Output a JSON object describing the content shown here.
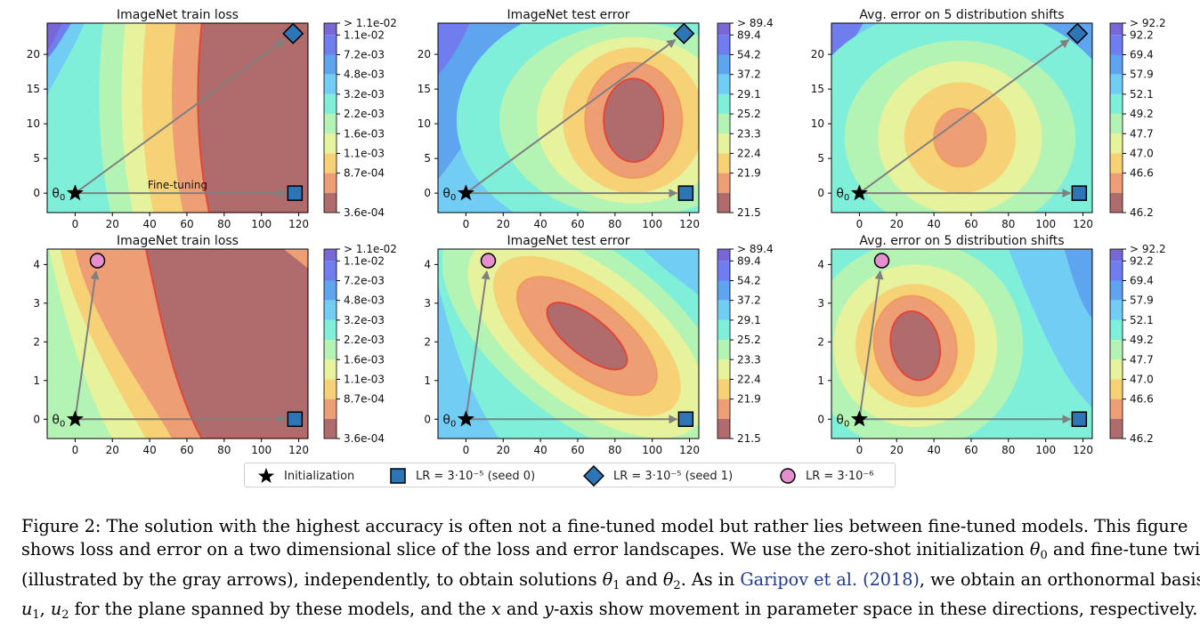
{
  "figure": {
    "panels": [
      {
        "title": "ImageNet train loss",
        "cbar": [
          "> 1.1e-02",
          "1.1e-02",
          "7.2e-03",
          "4.8e-03",
          "3.2e-03",
          "2.2e-03",
          "1.6e-03",
          "1.1e-03",
          "8.7e-04",
          "3.6e-04"
        ]
      },
      {
        "title": "ImageNet test error",
        "cbar": [
          "> 89.4",
          "89.4",
          "54.2",
          "37.2",
          "29.1",
          "25.2",
          "23.3",
          "22.4",
          "21.9",
          "21.5"
        ]
      },
      {
        "title": "Avg. error on 5 distribution shifts",
        "cbar": [
          "> 92.2",
          "92.2",
          "69.4",
          "57.9",
          "52.1",
          "49.2",
          "47.7",
          "47.0",
          "46.6",
          "46.2"
        ]
      }
    ],
    "x_ticks": [
      "0",
      "20",
      "40",
      "60",
      "80",
      "100",
      "120"
    ],
    "y_ticks_top": [
      "0",
      "5",
      "10",
      "15",
      "20"
    ],
    "y_ticks_bottom": [
      "0",
      "1",
      "2",
      "3",
      "4"
    ],
    "origin_label": "θ0",
    "finetuning_label": "Fine-tuning",
    "colors": {
      "levels": [
        "#b06c6c",
        "#ee9e74",
        "#f6d176",
        "#e6f39c",
        "#b3f3b4",
        "#7fefd9",
        "#72cdf4",
        "#5fa4ef",
        "#6f7dee",
        "#7867d6"
      ],
      "arrow": "#808080",
      "square": "#2e75b6",
      "diamond": "#2e75b6",
      "circle": "#e58fce"
    }
  },
  "legend": [
    {
      "icon": "star-icon",
      "label": "Initialization"
    },
    {
      "icon": "square-marker-icon",
      "label": "LR = 3·10⁻⁵ (seed 0)"
    },
    {
      "icon": "diamond-marker-icon",
      "label": "LR = 3·10⁻⁵ (seed 1)"
    },
    {
      "icon": "circle-marker-icon",
      "label": "LR = 3·10⁻⁶"
    }
  ],
  "caption": {
    "l1": "Figure 2: The solution with the highest accuracy is often not a fine-tuned model but rather lies between fine-tuned models. This figure",
    "l2": "shows loss and error on a two dimensional slice of the loss and error landscapes. We use the zero-shot initialization ",
    "l2_math": "θ",
    "l2_sub": "0",
    "l2_end": " and fine-tune twice",
    "l3a": "(illustrated by the gray arrows), independently, to obtain solutions ",
    "l3_t1": "θ",
    "l3_s1": "1",
    "l3b": " and ",
    "l3_t2": "θ",
    "l3_s2": "2",
    "l3c": ". As in ",
    "l3_cite": "Garipov et al. (2018)",
    "l3d": ", we obtain an orthonormal basis",
    "l4_u1": "u",
    "l4_s1": "1",
    "l4a": ", ",
    "l4_u2": "u",
    "l4_s2": "2",
    "l4b": " for the plane spanned by these models, and the ",
    "l4_x": "x",
    "l4c": " and ",
    "l4_y": "y",
    "l4d": "-axis show movement in parameter space in these directions, respectively."
  }
}
